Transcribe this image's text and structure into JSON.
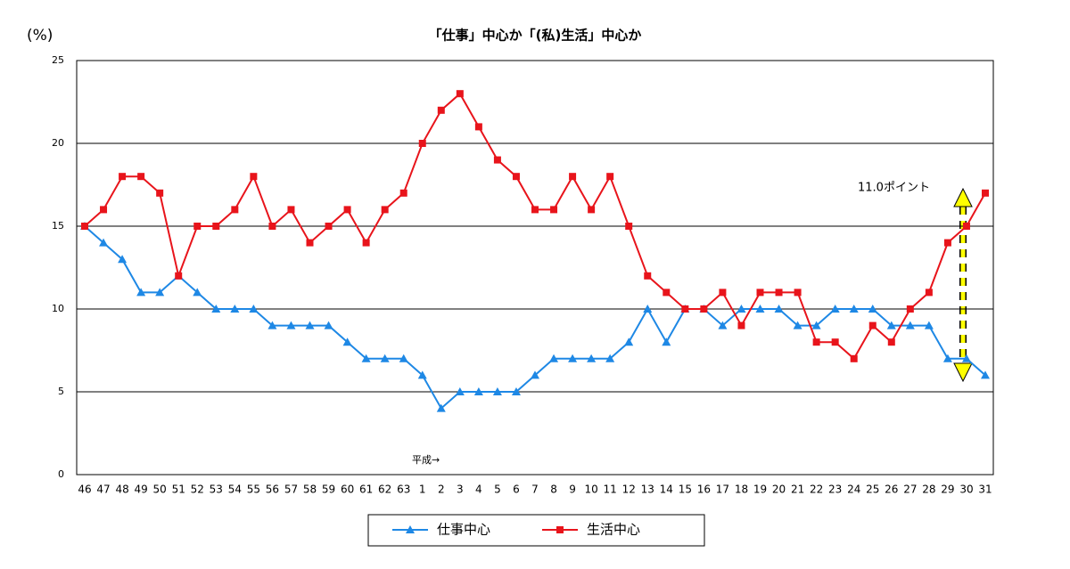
{
  "chart_data": {
    "type": "line",
    "title": "「仕事」中心か「(私)生活」中心か",
    "y_label": "(%)",
    "categories": [
      "46",
      "47",
      "48",
      "49",
      "50",
      "51",
      "52",
      "53",
      "54",
      "55",
      "56",
      "57",
      "58",
      "59",
      "60",
      "61",
      "62",
      "63",
      "1",
      "2",
      "3",
      "4",
      "5",
      "6",
      "7",
      "8",
      "9",
      "10",
      "11",
      "12",
      "13",
      "14",
      "15",
      "16",
      "17",
      "18",
      "19",
      "20",
      "21",
      "22",
      "23",
      "24",
      "25",
      "26",
      "27",
      "28",
      "29",
      "30",
      "31"
    ],
    "series": [
      {
        "name": "仕事中心",
        "color": "#1e88e5",
        "marker": "triangle",
        "values": [
          15,
          14,
          13,
          11,
          11,
          12,
          11,
          10,
          10,
          10,
          9,
          9,
          9,
          9,
          8,
          7,
          7,
          7,
          6,
          4,
          5,
          5,
          5,
          5,
          6,
          7,
          7,
          7,
          7,
          8,
          10,
          8,
          10,
          10,
          9,
          10,
          10,
          10,
          9,
          9,
          10,
          10,
          10,
          9,
          9,
          9,
          7,
          7,
          6
        ]
      },
      {
        "name": "生活中心",
        "color": "#e8141b",
        "marker": "square",
        "values": [
          15,
          16,
          18,
          18,
          17,
          12,
          15,
          15,
          16,
          18,
          15,
          16,
          14,
          15,
          16,
          14,
          16,
          17,
          20,
          22,
          23,
          21,
          19,
          18,
          16,
          16,
          18,
          16,
          18,
          15,
          12,
          11,
          10,
          10,
          11,
          9,
          11,
          11,
          11,
          8,
          8,
          7,
          9,
          8,
          10,
          11,
          14,
          15,
          17
        ]
      }
    ],
    "ylim": [
      0,
      25
    ],
    "yticks": [
      0,
      5,
      10,
      15,
      20,
      25
    ],
    "grid": true,
    "annotations": [
      "11.0ポイント",
      "平成→"
    ]
  }
}
